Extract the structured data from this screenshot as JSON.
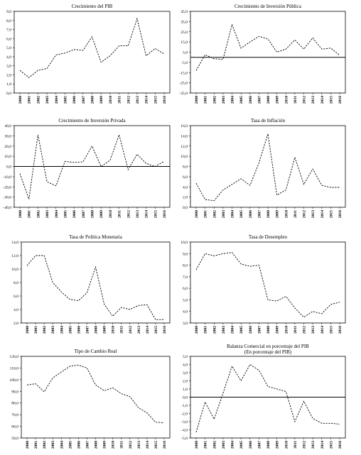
{
  "chart_data": [
    {
      "type": "line",
      "title": "Crecimiento del PIB",
      "x": [
        "2000",
        "2001",
        "2002",
        "2003",
        "2004",
        "2005",
        "2006",
        "2007",
        "2008",
        "2009",
        "2010",
        "2011",
        "2012",
        "2013",
        "2014",
        "2015",
        "2016"
      ],
      "values": [
        2.5,
        1.7,
        2.5,
        2.7,
        4.2,
        4.4,
        4.8,
        4.7,
        6.2,
        3.4,
        4.1,
        5.2,
        5.2,
        8.2,
        4.1,
        4.9,
        4.3
      ],
      "ylim": [
        0,
        9
      ],
      "yticks": [
        "0,0",
        "1,0",
        "2,0",
        "3,0",
        "4,0",
        "5,0",
        "6,0",
        "7,0",
        "8,0",
        "9,0"
      ],
      "zero_line": false
    },
    {
      "type": "line",
      "title": "Crecimiento de Inversión Pública",
      "x": [
        "2000",
        "2001",
        "2002",
        "2003",
        "2004",
        "2005",
        "2006",
        "2007",
        "2008",
        "2009",
        "2010",
        "2011",
        "2012",
        "2013",
        "2014",
        "2015",
        "2016"
      ],
      "values": [
        -13,
        2.5,
        -1.5,
        -2,
        32,
        9,
        15,
        20.5,
        18,
        5,
        8,
        17,
        8,
        19,
        8,
        9,
        2
      ],
      "ylim": [
        -35,
        45
      ],
      "yticks": [
        "-35,0",
        "-25,0",
        "-15,0",
        "-5,0",
        "5,0",
        "15,0",
        "25,0",
        "35,0",
        "45,0"
      ],
      "zero_line": true
    },
    {
      "type": "line",
      "title": "Crecimiento de Inversión Privada",
      "x": [
        "2000",
        "2001",
        "2002",
        "2003",
        "2004",
        "2005",
        "2006",
        "2007",
        "2008",
        "2009",
        "2010",
        "2011",
        "2012",
        "2013",
        "2014",
        "2015",
        "2016"
      ],
      "values": [
        -7,
        -32,
        31,
        -15,
        -19,
        5,
        4,
        4.5,
        20,
        0,
        6,
        31,
        -3,
        12,
        3,
        0,
        5
      ],
      "ylim": [
        -40,
        40
      ],
      "yticks": [
        "-40,0",
        "-30,0",
        "-20,0",
        "-10,0",
        "0,0",
        "10,0",
        "20,0",
        "30,0",
        "40,0"
      ],
      "zero_line": true
    },
    {
      "type": "line",
      "title": "Tasa de Inflación",
      "x": [
        "2000",
        "2001",
        "2002",
        "2003",
        "2004",
        "2005",
        "2006",
        "2007",
        "2008",
        "2009",
        "2010",
        "2011",
        "2012",
        "2013",
        "2014",
        "2015",
        "2016"
      ],
      "values": [
        4.7,
        1.5,
        1.3,
        3.4,
        4.5,
        5.6,
        4.3,
        8.7,
        14.4,
        2.4,
        3.4,
        9.8,
        4.5,
        7.5,
        4.3,
        3.9,
        3.9
      ],
      "ylim": [
        0,
        16
      ],
      "yticks": [
        "0,0",
        "2,0",
        "4,0",
        "6,0",
        "8,0",
        "10,0",
        "12,0",
        "14,0",
        "16,0"
      ],
      "zero_line": false
    },
    {
      "type": "line",
      "title": "Tasa de Política Monetaria",
      "x": [
        "2000",
        "2001",
        "2002",
        "2003",
        "2004",
        "2005",
        "2006",
        "2007",
        "2008",
        "2009",
        "2010",
        "2011",
        "2012",
        "2013",
        "2014",
        "2015",
        "2016"
      ],
      "values": [
        10.5,
        12,
        12,
        8,
        6.6,
        5.5,
        5.3,
        6.5,
        10.3,
        4.8,
        3,
        4.3,
        4,
        4.6,
        4.7,
        2.5,
        2.5
      ],
      "ylim": [
        2,
        14
      ],
      "yticks": [
        "2,0",
        "4,0",
        "6,0",
        "8,0",
        "10,0",
        "12,0",
        "14,0"
      ],
      "zero_line": false
    },
    {
      "type": "line",
      "title": "Tasa de Desempleo",
      "x": [
        "2000",
        "2001",
        "2002",
        "2003",
        "2004",
        "2005",
        "2006",
        "2007",
        "2008",
        "2009",
        "2010",
        "2011",
        "2012",
        "2013",
        "2014",
        "2015",
        "2016"
      ],
      "values": [
        7.6,
        9,
        8.8,
        9,
        9.1,
        8.1,
        7.9,
        8,
        5,
        4.9,
        5.3,
        4.3,
        3.5,
        4,
        3.8,
        4.6,
        4.8
      ],
      "ylim": [
        3,
        10
      ],
      "yticks": [
        "3,0",
        "4,0",
        "5,0",
        "6,0",
        "7,0",
        "8,0",
        "9,0",
        "10,0"
      ],
      "zero_line": false
    },
    {
      "type": "line",
      "title": "Tipo de Cambio Real",
      "x": [
        "2000",
        "2001",
        "2002",
        "2003",
        "2004",
        "2005",
        "2006",
        "2007",
        "2008",
        "2009",
        "2010",
        "2011",
        "2012",
        "2013",
        "2014",
        "2015",
        "2016"
      ],
      "values": [
        95.5,
        96.5,
        89.5,
        101.5,
        106.5,
        111.5,
        112.5,
        110,
        95.5,
        90.5,
        93,
        88,
        85.5,
        76,
        71.5,
        63.5,
        63
      ],
      "ylim": [
        50,
        120
      ],
      "yticks": [
        "50,0",
        "60,0",
        "70,0",
        "80,0",
        "90,0",
        "100,0",
        "110,0",
        "120,0"
      ],
      "zero_line": false
    },
    {
      "type": "line",
      "title": "Balanza Comercial en porcentaje del PIB",
      "subtitle": "(En porcentaje del PIB)",
      "x": [
        "2000",
        "2001",
        "2002",
        "2003",
        "2004",
        "2005",
        "2006",
        "2007",
        "2008",
        "2009",
        "2010",
        "2011",
        "2012",
        "2013",
        "2014",
        "2015",
        "2016"
      ],
      "values": [
        -4.3,
        -0.6,
        -2.7,
        0.5,
        3.8,
        2,
        4,
        3.3,
        1.3,
        1,
        0.7,
        -3,
        -0.5,
        -2.6,
        -3.2,
        -3.2,
        -3.3
      ],
      "ylim": [
        -5,
        5
      ],
      "yticks": [
        "-5,0",
        "-4,0",
        "-3,0",
        "-2,0",
        "-1,0",
        "0,0",
        "1,0",
        "2,0",
        "3,0",
        "4,0",
        "5,0"
      ],
      "zero_line": true
    }
  ]
}
